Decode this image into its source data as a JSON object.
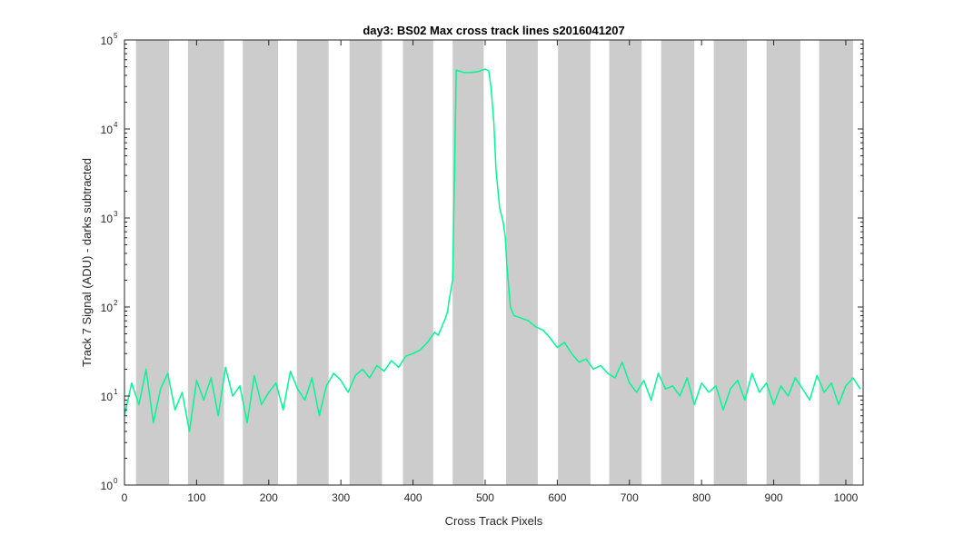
{
  "chart_data": {
    "type": "line",
    "title": "day3: BS02  Max cross track lines  s2016041207",
    "xlabel": "Cross Track Pixels",
    "ylabel": "Track 7 Signal (ADU) - darks subtracted",
    "xlim": [
      0,
      1024
    ],
    "ylim": [
      1,
      100000
    ],
    "yscale": "log",
    "xticks": [
      0,
      100,
      200,
      300,
      400,
      500,
      600,
      700,
      800,
      900,
      1000
    ],
    "yticks": [
      1,
      10,
      100,
      1000,
      10000,
      100000
    ],
    "ytick_labels": [
      {
        "base": "10",
        "exp": "0"
      },
      {
        "base": "10",
        "exp": "1"
      },
      {
        "base": "10",
        "exp": "2"
      },
      {
        "base": "10",
        "exp": "3"
      },
      {
        "base": "10",
        "exp": "4"
      },
      {
        "base": "10",
        "exp": "5"
      }
    ],
    "grid": false,
    "legend": "none",
    "shaded_bands": [
      [
        16,
        62
      ],
      [
        88,
        138
      ],
      [
        164,
        213
      ],
      [
        239,
        283
      ],
      [
        312,
        357
      ],
      [
        386,
        428
      ],
      [
        455,
        498
      ],
      [
        529,
        573
      ],
      [
        601,
        646
      ],
      [
        672,
        717
      ],
      [
        744,
        790
      ],
      [
        817,
        863
      ],
      [
        890,
        937
      ],
      [
        963,
        1010
      ]
    ],
    "band_color": "#cccccc",
    "series": [
      {
        "color": "#00f794",
        "x": [
          0,
          10,
          20,
          30,
          40,
          50,
          60,
          70,
          80,
          90,
          100,
          110,
          120,
          130,
          140,
          150,
          160,
          170,
          180,
          190,
          200,
          210,
          220,
          230,
          240,
          250,
          260,
          270,
          280,
          290,
          300,
          310,
          320,
          330,
          340,
          350,
          360,
          370,
          380,
          390,
          400,
          410,
          420,
          430,
          435,
          440,
          445,
          448,
          450,
          455,
          460,
          470,
          480,
          490,
          500,
          505,
          508,
          512,
          515,
          520,
          525,
          528,
          530,
          535,
          540,
          550,
          560,
          570,
          580,
          590,
          600,
          610,
          620,
          630,
          640,
          650,
          660,
          670,
          680,
          690,
          700,
          710,
          720,
          730,
          740,
          750,
          760,
          770,
          780,
          790,
          800,
          810,
          820,
          830,
          840,
          850,
          860,
          870,
          880,
          890,
          900,
          910,
          920,
          930,
          940,
          950,
          960,
          970,
          980,
          990,
          1000,
          1010,
          1020
        ],
        "y": [
          6,
          14,
          8,
          20,
          5,
          12,
          18,
          7,
          11,
          4,
          15,
          9,
          16,
          6,
          21,
          10,
          13,
          5,
          17,
          8,
          11,
          14,
          7,
          19,
          12,
          9,
          16,
          6,
          13,
          18,
          15,
          11,
          17,
          20,
          16,
          22,
          19,
          25,
          21,
          28,
          30,
          33,
          40,
          52,
          48,
          60,
          75,
          90,
          120,
          200,
          46000,
          43000,
          43000,
          44000,
          47000,
          45000,
          30000,
          12000,
          3500,
          1300,
          900,
          600,
          300,
          100,
          80,
          75,
          70,
          60,
          55,
          45,
          35,
          40,
          30,
          24,
          26,
          20,
          22,
          18,
          16,
          24,
          14,
          11,
          15,
          9,
          18,
          12,
          13,
          10,
          16,
          8,
          14,
          11,
          13,
          7,
          12,
          15,
          9,
          18,
          11,
          14,
          8,
          13,
          10,
          16,
          12,
          9,
          17,
          11,
          14,
          8,
          13,
          16,
          12
        ]
      }
    ]
  }
}
